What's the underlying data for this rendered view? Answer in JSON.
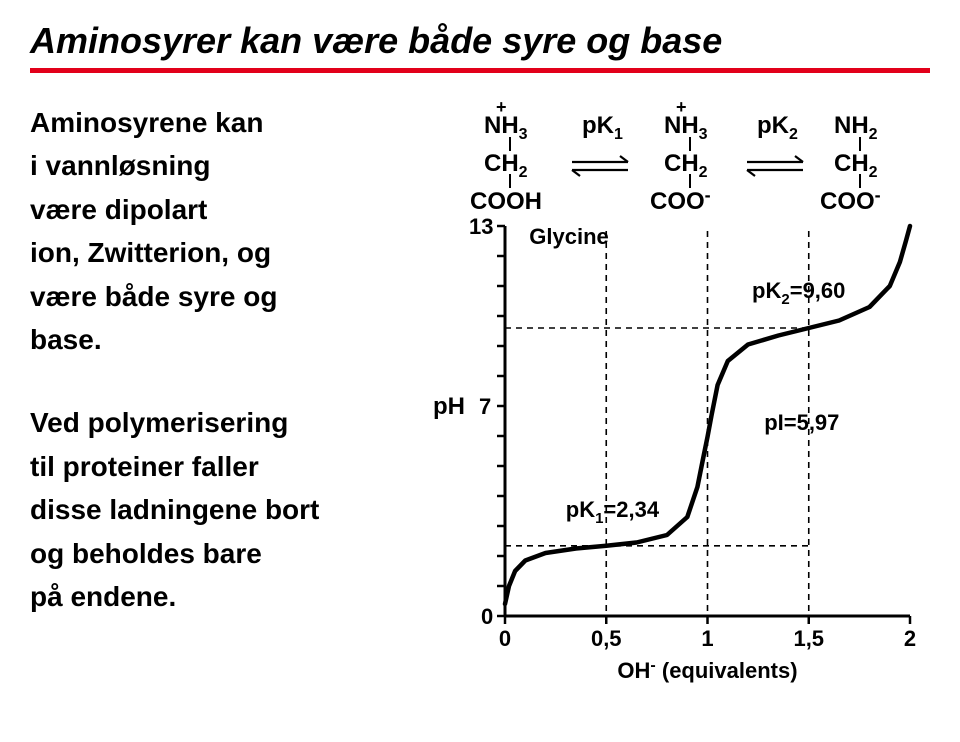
{
  "title": "Aminosyrer kan være både syre og base",
  "rule_color": "#e2001a",
  "left": {
    "p1_l1": "Aminosyrene kan",
    "p1_l2": "i vannløsning",
    "p1_l3": "være dipolart",
    "p1_l4": "ion, Zwitterion, og",
    "p1_l5": "være både syre og",
    "p1_l6": "base.",
    "p2_l1": "Ved polymerisering",
    "p2_l2": "til proteiner faller",
    "p2_l3": "disse ladningene bort",
    "p2_l4": "og beholdes bare",
    "p2_l5": "på endene."
  },
  "chem": {
    "s1_top": "NH",
    "s1_topsub": "3",
    "s1_plus": "+",
    "s1_mid": "CH",
    "s1_midsub": "2",
    "s1_bot": "COOH",
    "s2_top": "NH",
    "s2_topsub": "3",
    "s2_plus": "+",
    "s2_mid": "CH",
    "s2_midsub": "2",
    "s2_bot": "COO",
    "s2_botneg": "-",
    "s3_top": "NH",
    "s3_topsub": "2",
    "s3_mid": "CH",
    "s3_midsub": "2",
    "s3_bot": "COO",
    "s3_botneg": "-",
    "pk1": "pK",
    "pk1sub": "1",
    "pk2": "pK",
    "pk2sub": "2"
  },
  "chart": {
    "yaxis_label": "pH",
    "ylim_min": 0,
    "ylim_max": 13,
    "ytick_top": "13",
    "ytick_mid": "7",
    "ytick_bot": "0",
    "xlim_min": 0,
    "xlim_max": 2,
    "xticks": [
      "0",
      "0,5",
      "1",
      "1,5",
      "2"
    ],
    "xlabel": "OH",
    "xlabel_sup": "-",
    "xlabel_tail": " (equivalents)",
    "legend": "Glycine",
    "annot_pk2": "pK",
    "annot_pk2_sub": "2",
    "annot_pk2_val": "=9,60",
    "annot_pk1": "pK",
    "annot_pk1_sub": "1",
    "annot_pk1_val": "=2,34",
    "annot_pi": "pI=5,97",
    "curve_color": "#000000",
    "axis_color": "#000000",
    "dash_color": "#000000",
    "bg": "#ffffff",
    "curve": [
      [
        0.0,
        0.4
      ],
      [
        0.02,
        1.0
      ],
      [
        0.05,
        1.5
      ],
      [
        0.1,
        1.85
      ],
      [
        0.2,
        2.1
      ],
      [
        0.35,
        2.25
      ],
      [
        0.5,
        2.34
      ],
      [
        0.65,
        2.45
      ],
      [
        0.8,
        2.7
      ],
      [
        0.9,
        3.3
      ],
      [
        0.95,
        4.3
      ],
      [
        0.98,
        5.3
      ],
      [
        1.0,
        5.97
      ],
      [
        1.02,
        6.7
      ],
      [
        1.05,
        7.7
      ],
      [
        1.1,
        8.5
      ],
      [
        1.2,
        9.05
      ],
      [
        1.35,
        9.35
      ],
      [
        1.5,
        9.6
      ],
      [
        1.65,
        9.85
      ],
      [
        1.8,
        10.3
      ],
      [
        1.9,
        11.0
      ],
      [
        1.95,
        11.8
      ],
      [
        1.98,
        12.5
      ],
      [
        2.0,
        13.0
      ]
    ],
    "dash_v_x": [
      0.5,
      1.0,
      1.5
    ],
    "dash_h_y": [
      2.34,
      9.6
    ]
  }
}
